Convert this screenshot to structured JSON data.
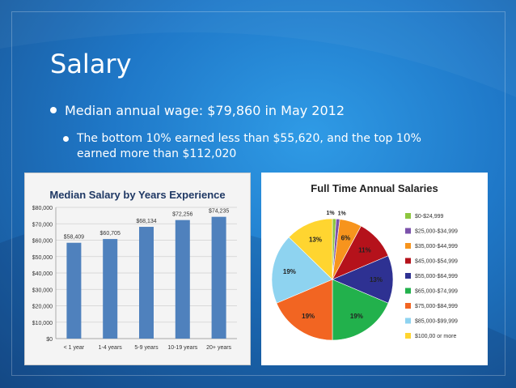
{
  "slide": {
    "title": "Salary",
    "bullet1": "Median annual wage: $79,860 in May 2012",
    "bullet2": "The bottom 10% earned less than $55,620, and the top 10% earned more than $112,020"
  },
  "colors": {
    "bar": "#4f81bd"
  },
  "chart_data": [
    {
      "type": "bar",
      "title": "Median Salary by Years Experience",
      "categories": [
        "< 1 year",
        "1-4 years",
        "5-9 years",
        "10-19 years",
        "20+ years"
      ],
      "values": [
        58409,
        60705,
        68134,
        72256,
        74235
      ],
      "data_labels": [
        "$58,409",
        "$60,705",
        "$68,134",
        "$72,256",
        "$74,235"
      ],
      "yticks": [
        "$0",
        "$10,000",
        "$20,000",
        "$30,000",
        "$40,000",
        "$50,000",
        "$60,000",
        "$70,000",
        "$80,000"
      ],
      "ylim": [
        0,
        80000
      ],
      "grid": true
    },
    {
      "type": "pie",
      "title": "Full Time Annual Salaries",
      "legend_position": "right",
      "slices": [
        {
          "label": "$0-$24,999",
          "value": 1,
          "text": "1%",
          "color": "#8dc63f"
        },
        {
          "label": "$25,000-$34,999",
          "value": 1,
          "text": "1%",
          "color": "#7b52ab"
        },
        {
          "label": "$35,000-$44,999",
          "value": 6,
          "text": "6%",
          "color": "#f7941d"
        },
        {
          "label": "$45,000-$54,999",
          "value": 11,
          "text": "11%",
          "color": "#b5121b"
        },
        {
          "label": "$55,000-$64,999",
          "value": 13,
          "text": "13%",
          "color": "#2e3192"
        },
        {
          "label": "$65,000-$74,999",
          "value": 19,
          "text": "19%",
          "color": "#22b14c"
        },
        {
          "label": "$75,000-$84,999",
          "value": 19,
          "text": "19%",
          "color": "#f26522"
        },
        {
          "label": "$85,000-$99,999",
          "value": 19,
          "text": "19%",
          "color": "#8ed3f0"
        },
        {
          "label": "$100,00 or more",
          "value": 13,
          "text": "13%",
          "color": "#ffd530"
        }
      ]
    }
  ]
}
